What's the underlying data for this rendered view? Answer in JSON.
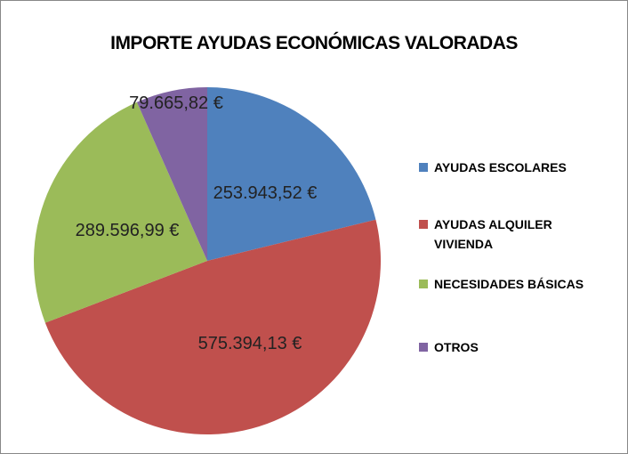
{
  "chart_data": {
    "type": "pie",
    "title": "IMPORTE AYUDAS ECONÓMICAS VALORADAS",
    "categories": [
      "AYUDAS ESCOLARES",
      "AYUDAS ALQUILER VIVIENDA",
      "NECESIDADES BÁSICAS",
      "OTROS"
    ],
    "values": [
      253943.52,
      575394.13,
      289596.99,
      79665.82
    ],
    "value_labels": [
      "253.943,52 €",
      "575.394,13 €",
      "289.596,99 €",
      "79.665,82 €"
    ],
    "colors": [
      "#4f81bd",
      "#c0504d",
      "#9bbb59",
      "#8064a2"
    ],
    "legend": "right"
  }
}
